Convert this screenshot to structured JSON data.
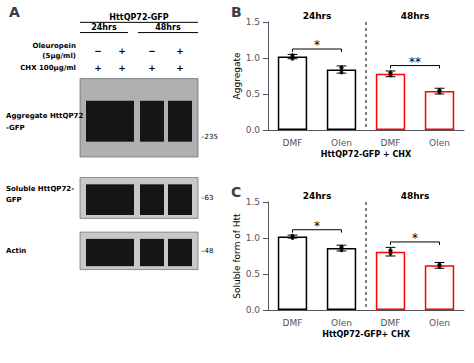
{
  "chart_data": [
    {
      "type": "blot",
      "title": "A",
      "header": "HttQP72-GFP",
      "groups": [
        "24hrs",
        "48hrs"
      ],
      "rows": [
        {
          "label": [
            "Oleuropein",
            "(5μg/ml)"
          ],
          "values": [
            "−",
            "+",
            "−",
            "+"
          ]
        },
        {
          "label": [
            "CHX 100μg/ml"
          ],
          "values": [
            "+",
            "+",
            "+",
            "+"
          ]
        }
      ],
      "bands": [
        {
          "label": [
            "Aggregate HttQP72",
            "-GFP"
          ],
          "mw_label": "–235"
        },
        {
          "label": [
            "Soluble HttQP72-",
            "GFP"
          ],
          "mw_label": "–63"
        },
        {
          "label": [
            "Actin"
          ],
          "mw_label": "–48"
        }
      ]
    },
    {
      "type": "bar",
      "title": "B",
      "categories": [
        "DMF",
        "Olen",
        "DMF",
        "Olen"
      ],
      "groups": [
        "24hrs",
        "48hrs"
      ],
      "values": [
        1.02,
        0.84,
        0.78,
        0.54
      ],
      "errors": [
        0.03,
        0.05,
        0.04,
        0.04
      ],
      "points": [
        [
          1.02,
          0.99,
          1.04
        ],
        [
          0.8,
          0.86,
          0.87
        ],
        [
          0.76,
          0.79,
          0.8
        ],
        [
          0.52,
          0.55,
          0.55
        ]
      ],
      "colors": [
        "black",
        "black",
        "red",
        "red"
      ],
      "significance": [
        "*",
        "**"
      ],
      "ylabel": "Aggregate",
      "xlabel": "HttQP72-GFP + CHX",
      "ylim": [
        0,
        1.5
      ],
      "yticks": [
        {
          "value": 0,
          "label": "0.0"
        },
        0.5,
        {
          "value": 1,
          "label": "1.0"
        },
        1.5
      ],
      "grid": false
    },
    {
      "type": "bar",
      "title": "C",
      "categories": [
        "DMF",
        "Olen",
        "DMF",
        "Olen"
      ],
      "groups": [
        "24hrs",
        "48hrs"
      ],
      "values": [
        1.02,
        0.86,
        0.81,
        0.62
      ],
      "errors": [
        0.02,
        0.04,
        0.06,
        0.04
      ],
      "points": [
        [
          1.01,
          1.0,
          1.03
        ],
        [
          0.83,
          0.87,
          0.88
        ],
        [
          0.78,
          0.83,
          0.82
        ],
        [
          0.6,
          0.63,
          0.63
        ]
      ],
      "colors": [
        "black",
        "black",
        "red",
        "red"
      ],
      "significance": [
        "*",
        "*"
      ],
      "ylabel": "Soluble form of Htt",
      "xlabel": "HttQP72-GFP+ CHX",
      "ylim": [
        0,
        1.5
      ],
      "yticks": [
        {
          "value": 0,
          "label": "0.0"
        },
        0.5,
        {
          "value": 1,
          "label": "1.0"
        },
        1.5
      ],
      "grid": false
    }
  ]
}
